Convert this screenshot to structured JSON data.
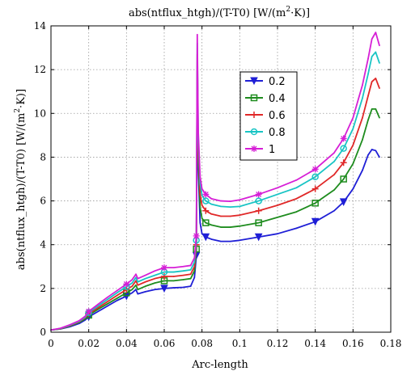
{
  "chart_data": {
    "type": "line",
    "title_parts": {
      "a": "abs(ntflux_htgh)/(T-T0) [W/(m",
      "sup": "2",
      "b": "·K)]"
    },
    "xlabel": "Arc-length",
    "ylabel_parts": {
      "a": "abs(ntflux_htgh)/(T-T0) [W/(m",
      "sup": "2",
      "b": "·K)]"
    },
    "xlim": [
      0,
      0.18
    ],
    "ylim": [
      0,
      14
    ],
    "xticks": [
      0,
      0.02,
      0.04,
      0.06,
      0.08,
      0.1,
      0.12,
      0.14,
      0.16,
      0.18
    ],
    "xtick_labels": [
      "0",
      "0.02",
      "0.04",
      "0.06",
      "0.08",
      "0.1",
      "0.12",
      "0.14",
      "0.16",
      "0.18"
    ],
    "yticks": [
      0,
      2,
      4,
      6,
      8,
      10,
      12,
      14
    ],
    "ytick_labels": [
      "0",
      "2",
      "4",
      "6",
      "8",
      "10",
      "12",
      "14"
    ],
    "grid": true,
    "legend_position": "top-right",
    "x": [
      0,
      0.005,
      0.01,
      0.015,
      0.018,
      0.02,
      0.025,
      0.03,
      0.035,
      0.04,
      0.043,
      0.045,
      0.046,
      0.05,
      0.055,
      0.06,
      0.065,
      0.07,
      0.074,
      0.076,
      0.077,
      0.0775,
      0.078,
      0.079,
      0.08,
      0.082,
      0.085,
      0.09,
      0.095,
      0.1,
      0.11,
      0.12,
      0.13,
      0.14,
      0.15,
      0.155,
      0.16,
      0.165,
      0.168,
      0.17,
      0.172,
      0.174
    ],
    "series": [
      {
        "name": "0.2",
        "color": "#1f1fd6",
        "marker": "triangle-down",
        "values": [
          0.1,
          0.15,
          0.25,
          0.4,
          0.55,
          0.7,
          0.95,
          1.2,
          1.45,
          1.65,
          1.8,
          1.95,
          1.75,
          1.85,
          1.95,
          2.0,
          2.03,
          2.05,
          2.1,
          2.5,
          3.5,
          11.0,
          7.5,
          5.0,
          4.5,
          4.35,
          4.25,
          4.15,
          4.15,
          4.2,
          4.35,
          4.5,
          4.75,
          5.05,
          5.55,
          5.95,
          6.55,
          7.4,
          8.1,
          8.35,
          8.3,
          8.0
        ]
      },
      {
        "name": "0.4",
        "color": "#1e8c1e",
        "marker": "square",
        "values": [
          0.1,
          0.15,
          0.28,
          0.45,
          0.6,
          0.78,
          1.05,
          1.3,
          1.55,
          1.8,
          1.95,
          2.15,
          1.95,
          2.1,
          2.25,
          2.35,
          2.35,
          2.4,
          2.45,
          2.8,
          3.8,
          12.0,
          8.0,
          5.7,
          5.2,
          5.0,
          4.9,
          4.8,
          4.8,
          4.85,
          5.0,
          5.25,
          5.5,
          5.9,
          6.5,
          7.0,
          7.7,
          8.8,
          9.7,
          10.2,
          10.2,
          9.8
        ]
      },
      {
        "name": "0.6",
        "color": "#e02828",
        "marker": "plus",
        "values": [
          0.1,
          0.16,
          0.3,
          0.48,
          0.65,
          0.85,
          1.12,
          1.4,
          1.68,
          1.95,
          2.1,
          2.35,
          2.15,
          2.3,
          2.45,
          2.55,
          2.55,
          2.6,
          2.65,
          3.0,
          4.0,
          12.7,
          8.5,
          6.3,
          5.8,
          5.55,
          5.4,
          5.3,
          5.3,
          5.35,
          5.55,
          5.8,
          6.1,
          6.55,
          7.2,
          7.75,
          8.55,
          9.8,
          10.8,
          11.45,
          11.6,
          11.15
        ]
      },
      {
        "name": "0.8",
        "color": "#18c4c4",
        "marker": "circle",
        "values": [
          0.1,
          0.17,
          0.32,
          0.5,
          0.68,
          0.9,
          1.2,
          1.5,
          1.8,
          2.08,
          2.25,
          2.5,
          2.3,
          2.45,
          2.6,
          2.75,
          2.75,
          2.8,
          2.85,
          3.2,
          4.2,
          13.2,
          8.9,
          6.8,
          6.25,
          6.0,
          5.85,
          5.75,
          5.72,
          5.75,
          6.0,
          6.3,
          6.6,
          7.1,
          7.8,
          8.4,
          9.3,
          10.7,
          11.8,
          12.6,
          12.8,
          12.3
        ]
      },
      {
        "name": "1",
        "color": "#d61fd6",
        "marker": "star",
        "values": [
          0.1,
          0.18,
          0.34,
          0.53,
          0.72,
          0.95,
          1.28,
          1.6,
          1.9,
          2.2,
          2.4,
          2.65,
          2.45,
          2.6,
          2.8,
          2.95,
          2.95,
          3.0,
          3.05,
          3.4,
          4.4,
          13.6,
          9.2,
          7.1,
          6.55,
          6.3,
          6.1,
          6.0,
          5.98,
          6.05,
          6.3,
          6.6,
          6.95,
          7.45,
          8.2,
          8.85,
          9.8,
          11.3,
          12.5,
          13.4,
          13.7,
          13.1
        ]
      }
    ]
  }
}
